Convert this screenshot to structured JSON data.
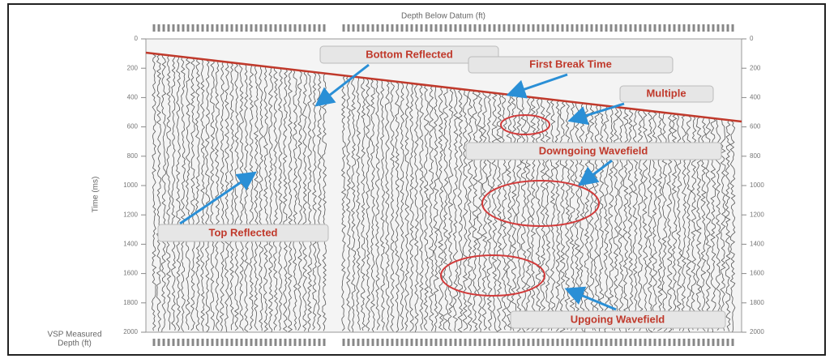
{
  "figure": {
    "top_axis_label": "Depth Below Datum (ft)",
    "left_axis_label": "Time (ms)",
    "bottom_axis_label": [
      "VSP Measured",
      "Depth (ft)"
    ],
    "time_ticks": [
      0,
      200,
      400,
      600,
      800,
      1000,
      1200,
      1400,
      1600,
      1800,
      2000
    ],
    "annotations": [
      "Bottom Reflected",
      "First Break Time",
      "Multiple",
      "Downgoing Wavefield",
      "Top Reflected",
      "Upgoing Wavefield"
    ]
  }
}
